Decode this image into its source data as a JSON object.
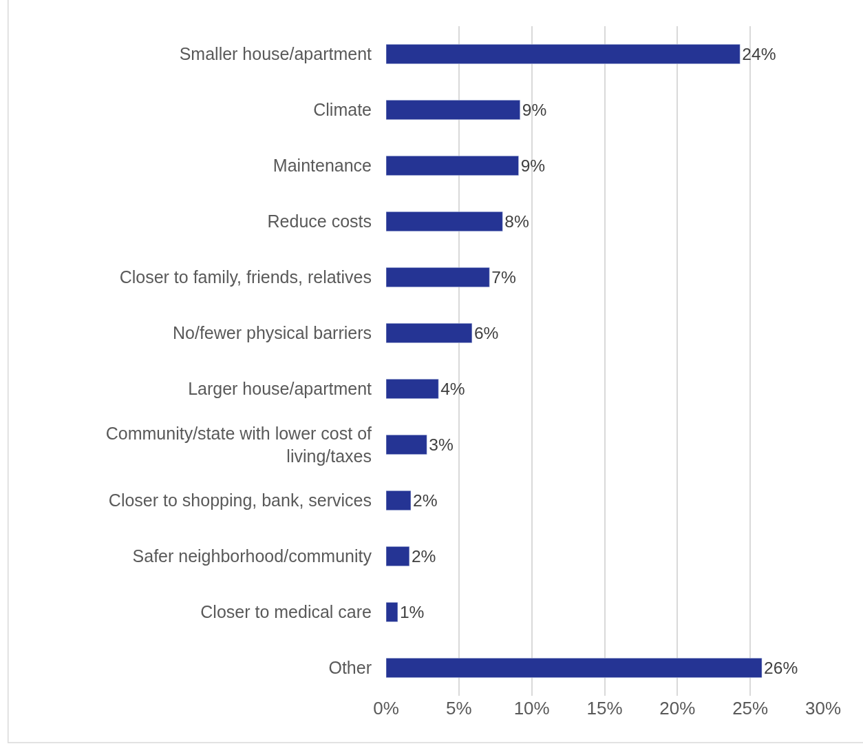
{
  "chart_data": {
    "type": "bar",
    "orientation": "horizontal",
    "categories": [
      "Smaller house/apartment",
      "Climate",
      "Maintenance",
      "Reduce costs",
      "Closer to family, friends, relatives",
      "No/fewer physical barriers",
      "Larger house/apartment",
      "Community/state with lower cost of living/taxes",
      "Closer to shopping, bank, services",
      "Safer neighborhood/community",
      "Closer to medical care",
      "Other"
    ],
    "values": [
      24.3,
      9.2,
      9.1,
      8.0,
      7.1,
      5.9,
      3.6,
      2.8,
      1.7,
      1.6,
      0.8,
      25.8
    ],
    "value_labels": [
      "24%",
      "9%",
      "9%",
      "8%",
      "7%",
      "6%",
      "4%",
      "3%",
      "2%",
      "2%",
      "1%",
      "26%"
    ],
    "color": "#253494",
    "xlim": [
      0,
      30
    ],
    "xticks": [
      {
        "value": 0,
        "label": "0%"
      },
      {
        "value": 5,
        "label": "5%"
      },
      {
        "value": 10,
        "label": "10%"
      },
      {
        "value": 15,
        "label": "15%"
      },
      {
        "value": 20,
        "label": "20%"
      },
      {
        "value": 25,
        "label": "25%"
      },
      {
        "value": 30,
        "label": "30%"
      }
    ],
    "grid": "x"
  }
}
